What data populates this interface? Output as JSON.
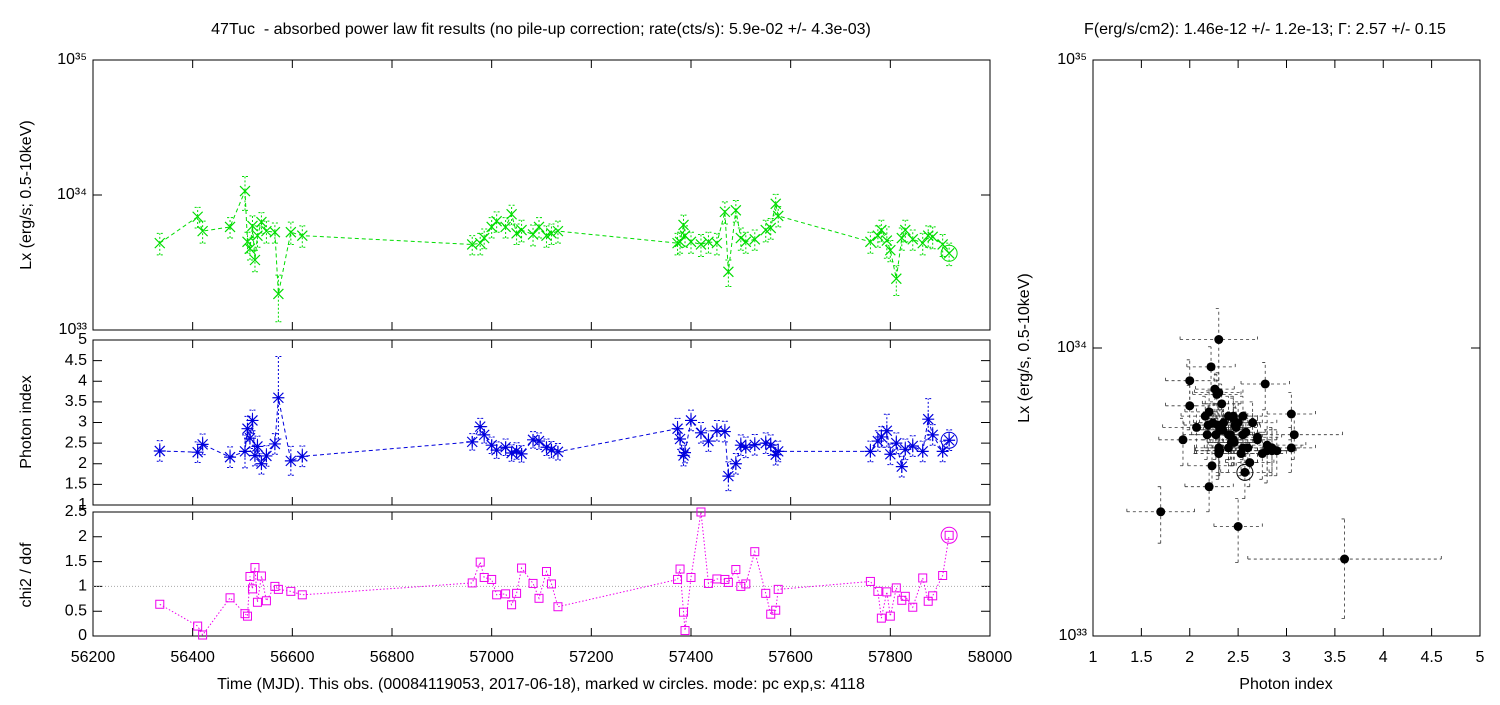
{
  "chart_data": [
    {
      "type": "line",
      "title": "47Tuc  - absorbed power law fit results (no pile-up correction; rate(cts/s): 5.9e-02 +/- 4.3e-03)",
      "ylabel": "Lx (erg/s; 0.5-10keV)",
      "log": true,
      "ylim": [
        1e+33,
        1e+35
      ],
      "yticks": [
        {
          "value": 1e+33,
          "label": "10³³"
        },
        {
          "value": 1e+34,
          "label": "10³⁴"
        },
        {
          "value": 1e+35,
          "label": "10³⁵"
        }
      ],
      "color": "#00dd00",
      "x": [
        56334,
        56410,
        56420,
        56475,
        56505,
        56510,
        56515,
        56520,
        56525,
        56530,
        56538,
        56548,
        56565,
        56572,
        56597,
        56620,
        56961,
        56977,
        56985,
        57000,
        57010,
        57028,
        57040,
        57050,
        57060,
        57083,
        57095,
        57110,
        57120,
        57133,
        57373,
        57378,
        57385,
        57388,
        57400,
        57420,
        57435,
        57452,
        57468,
        57475,
        57490,
        57500,
        57510,
        57528,
        57550,
        57560,
        57570,
        57575,
        57760,
        57775,
        57782,
        57793,
        57800,
        57812,
        57823,
        57830,
        57845,
        57865,
        57876,
        57885,
        57905,
        57918
      ],
      "values": [
        4.4e+33,
        6.9e+33,
        5.4e+33,
        5.8e+33,
        1.07e+34,
        4.5e+33,
        4e+33,
        5.9e+33,
        3.3e+33,
        5e+33,
        6.3e+33,
        5.4e+33,
        5.3e+33,
        1.85e+33,
        5.3e+33,
        5e+33,
        4.3e+33,
        4.4e+33,
        4.8e+33,
        5.8e+33,
        6.4e+33,
        5.8e+33,
        7.2e+33,
        5.2e+33,
        5.5e+33,
        5.1e+33,
        5.8e+33,
        5e+33,
        5.2e+33,
        5.4e+33,
        4.4e+33,
        4.5e+33,
        6e+33,
        5e+33,
        4.5e+33,
        4.3e+33,
        4.5e+33,
        4.4e+33,
        7.5e+33,
        2.7e+33,
        7.7e+33,
        4.8e+33,
        4.5e+33,
        4.7e+33,
        5.5e+33,
        5.7e+33,
        8.6e+33,
        7e+33,
        4.5e+33,
        5e+33,
        5.5e+33,
        4.6e+33,
        3.9e+33,
        2.4e+33,
        4.8e+33,
        5.5e+33,
        4.7e+33,
        4.4e+33,
        5e+33,
        4.9e+33,
        4.3e+33,
        3.7e+33
      ],
      "errors": [
        8e+32,
        1.2e+33,
        1e+33,
        1e+33,
        3e+33,
        8e+32,
        7e+32,
        1.1e+33,
        6e+32,
        9e+32,
        1.1e+33,
        1e+33,
        9e+32,
        7e+32,
        1e+33,
        9e+32,
        7e+32,
        8e+32,
        8e+32,
        1e+33,
        1.1e+33,
        1e+33,
        1.2e+33,
        9e+32,
        1e+33,
        9e+32,
        1e+33,
        9e+32,
        9e+32,
        1e+33,
        8e+32,
        8e+32,
        1.1e+33,
        9e+32,
        8e+32,
        8e+32,
        8e+32,
        8e+32,
        1.4e+33,
        6e+32,
        1.4e+33,
        9e+32,
        8e+32,
        8e+32,
        1e+33,
        1e+33,
        1.5e+33,
        1.2e+33,
        8e+32,
        9e+32,
        1e+33,
        1.2e+33,
        7e+32,
        6e+32,
        9e+32,
        1e+33,
        8e+32,
        8e+32,
        9e+32,
        9e+32,
        8e+32,
        7e+32
      ]
    },
    {
      "type": "line",
      "ylabel": "Photon index",
      "ylim": [
        1,
        5
      ],
      "yticks": [
        1,
        1.5,
        2,
        2.5,
        3,
        3.5,
        4,
        4.5,
        5
      ],
      "color": "#0000dd",
      "values": [
        2.31,
        2.28,
        2.47,
        2.16,
        2.3,
        2.85,
        2.62,
        3.05,
        2.2,
        2.42,
        2.0,
        2.19,
        2.48,
        3.6,
        2.07,
        2.18,
        2.53,
        2.9,
        2.7,
        2.45,
        2.33,
        2.4,
        2.26,
        2.31,
        2.24,
        2.58,
        2.55,
        2.4,
        2.34,
        2.29,
        2.85,
        2.6,
        2.2,
        2.27,
        3.05,
        2.75,
        2.55,
        2.8,
        2.78,
        1.7,
        2.0,
        2.45,
        2.4,
        2.46,
        2.5,
        2.45,
        2.22,
        2.3,
        2.3,
        2.55,
        2.65,
        2.8,
        2.23,
        2.5,
        1.93,
        2.35,
        2.43,
        2.3,
        3.08,
        2.7,
        2.3,
        2.57
      ],
      "errors": [
        0.25,
        0.25,
        0.25,
        0.25,
        0.4,
        0.3,
        0.25,
        0.25,
        0.25,
        0.25,
        0.25,
        0.25,
        0.25,
        1.0,
        0.35,
        0.25,
        0.2,
        0.2,
        0.2,
        0.2,
        0.2,
        0.2,
        0.2,
        0.2,
        0.2,
        0.2,
        0.2,
        0.2,
        0.2,
        0.2,
        0.25,
        0.25,
        0.25,
        0.25,
        0.25,
        0.25,
        0.25,
        0.25,
        0.25,
        0.35,
        0.25,
        0.25,
        0.25,
        0.25,
        0.25,
        0.25,
        0.25,
        0.25,
        0.25,
        0.25,
        0.25,
        0.4,
        0.25,
        0.25,
        0.25,
        0.25,
        0.25,
        0.25,
        0.5,
        0.25,
        0.25,
        0.25
      ]
    },
    {
      "type": "line",
      "ylabel": "chi2 / dof",
      "ylim": [
        0,
        2.5
      ],
      "yticks": [
        0,
        0.5,
        1,
        1.5,
        2,
        2.5
      ],
      "color": "#ee00ee",
      "refline": 1,
      "xlabel": "Time (MJD). This obs. (00084119053, 2017-06-18), marked w circles. mode: pc exp,s: 4118",
      "xlim": [
        56200,
        58000
      ],
      "xticks": [
        56200,
        56400,
        56600,
        56800,
        57000,
        57200,
        57400,
        57600,
        57800,
        58000
      ],
      "values": [
        0.64,
        0.2,
        0.02,
        0.77,
        0.45,
        0.4,
        1.2,
        0.95,
        1.38,
        0.68,
        1.21,
        0.71,
        1.0,
        0.94,
        0.9,
        0.83,
        1.07,
        1.49,
        1.18,
        1.14,
        0.83,
        0.85,
        0.63,
        0.86,
        1.37,
        1.06,
        0.76,
        1.3,
        1.05,
        0.59,
        1.14,
        1.35,
        0.48,
        0.11,
        1.18,
        2.5,
        1.06,
        1.15,
        1.14,
        1.08,
        1.34,
        1.0,
        1.05,
        1.7,
        0.86,
        0.44,
        0.52,
        0.94,
        1.1,
        0.9,
        0.36,
        0.89,
        0.4,
        0.97,
        0.72,
        0.8,
        0.58,
        1.17,
        0.7,
        0.81,
        1.22,
        2.03
      ]
    },
    {
      "type": "scatter",
      "title": "F(erg/s/cm2): 1.46e-12 +/- 1.2e-13; Γ: 2.57 +/- 0.15",
      "xlabel": "Photon index",
      "ylabel": "Lx (erg/s, 0.5-10keV)",
      "color": "#000000",
      "log": true,
      "xlim": [
        1,
        5
      ],
      "xticks": [
        1,
        1.5,
        2,
        2.5,
        3,
        3.5,
        4,
        4.5,
        5
      ],
      "ylim": [
        1e+33,
        1e+35
      ],
      "yticks": [
        {
          "value": 1e+33,
          "label": "10³³"
        },
        {
          "value": 1e+34,
          "label": "10³⁴"
        },
        {
          "value": 1e+35,
          "label": "10³⁵"
        }
      ]
    }
  ]
}
